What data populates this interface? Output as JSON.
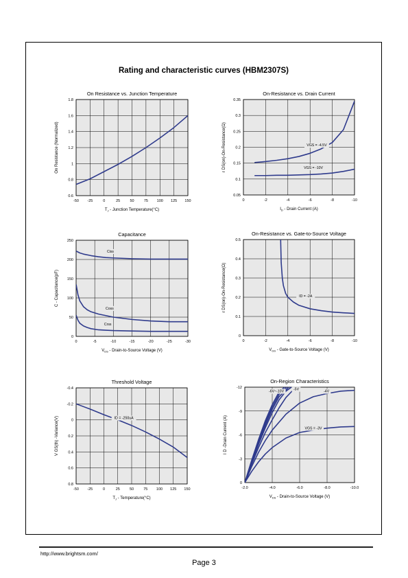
{
  "page": {
    "main_title": "Rating and characteristic curves (HBM2307S)",
    "footer_url": "http://www.brightsm.com/",
    "footer_page": "Page 3",
    "curve_color": "#2e3a8c",
    "plot_bg": "#e8e8e8"
  },
  "chart_data": [
    {
      "id": "c1",
      "type": "line",
      "title": "On Resistance vs. Junction Temperature",
      "xlabel": {
        "sub": "J",
        "main": "T",
        "rest": " - Junction Temperature(°C)"
      },
      "ylabel": "On Resistance (Normalized)",
      "xlim": [
        -50,
        150
      ],
      "ylim": [
        0.6,
        1.8
      ],
      "x_ticks": [
        -50,
        -25,
        0,
        25,
        50,
        75,
        100,
        125,
        150
      ],
      "x_tick_labels": [
        "-50",
        "-25",
        "0",
        "25",
        "50",
        "75",
        "100",
        "125",
        "150"
      ],
      "y_ticks": [
        0.6,
        0.8,
        1.0,
        1.2,
        1.4,
        1.6,
        1.8
      ],
      "y_tick_labels": [
        "0.6",
        "0.8",
        "1",
        "1.2",
        "1.4",
        "1.6",
        "1.8"
      ],
      "series": [
        {
          "x": [
            -50,
            -25,
            0,
            25,
            50,
            75,
            100,
            125,
            150
          ],
          "y": [
            0.74,
            0.81,
            0.9,
            0.99,
            1.09,
            1.2,
            1.32,
            1.45,
            1.6
          ]
        }
      ],
      "annotations": []
    },
    {
      "id": "c2",
      "type": "line",
      "title": "On-Resistance vs. Drain Current",
      "xlabel": {
        "sub": "D",
        "main": "I",
        "rest": " - Drain Current (A)"
      },
      "ylabel": "r DS(on)-On-Resistance(Ω)",
      "xlim": [
        0,
        -10
      ],
      "ylim": [
        0.05,
        0.35
      ],
      "x_ticks": [
        0,
        -2,
        -4,
        -6,
        -8,
        -10
      ],
      "x_tick_labels": [
        "0",
        "-2",
        "-4",
        "-6",
        "-8",
        "-10"
      ],
      "y_ticks": [
        0.05,
        0.1,
        0.15,
        0.2,
        0.25,
        0.3,
        0.35
      ],
      "y_tick_labels": [
        "0.05",
        "0.1",
        "0.15",
        "0.2",
        "0.25",
        "0.3",
        "0.35"
      ],
      "series": [
        {
          "name": "VGS = -4.5V",
          "x": [
            -1,
            -2,
            -3,
            -4,
            -5,
            -6,
            -7,
            -8,
            -9,
            -10
          ],
          "y": [
            0.152,
            0.155,
            0.159,
            0.164,
            0.171,
            0.181,
            0.195,
            0.215,
            0.255,
            0.345
          ]
        },
        {
          "name": "VGS = -10V",
          "x": [
            -1,
            -2,
            -3,
            -4,
            -5,
            -6,
            -7,
            -8,
            -9,
            -10
          ],
          "y": [
            0.111,
            0.111,
            0.112,
            0.112,
            0.113,
            0.114,
            0.116,
            0.119,
            0.124,
            0.131
          ]
        }
      ],
      "annotations": [
        {
          "text": "VGS = -4.5V",
          "x": -6.6,
          "y": 0.203
        },
        {
          "text": "VGS = -10V",
          "x": -6.3,
          "y": 0.132
        }
      ]
    },
    {
      "id": "c3",
      "type": "line",
      "title": "Capacitance",
      "xlabel": {
        "sub": "DS",
        "main": "V",
        "rest": " - Drain-to-Source Voltage (V)"
      },
      "ylabel": "C - Capacitance(pF)",
      "xlim": [
        0,
        -30
      ],
      "ylim": [
        0,
        250
      ],
      "x_ticks": [
        0,
        -5,
        -10,
        -15,
        -20,
        -25,
        -30
      ],
      "x_tick_labels": [
        "0",
        "-5",
        "-10",
        "-15",
        "-20",
        "-25",
        "-30"
      ],
      "y_ticks": [
        0,
        50,
        100,
        150,
        200,
        250
      ],
      "y_tick_labels": [
        "0",
        "50",
        "100",
        "150",
        "200",
        "250"
      ],
      "series": [
        {
          "name": "Ciss",
          "x": [
            0,
            -1,
            -2,
            -4,
            -6,
            -8,
            -10,
            -15,
            -20,
            -25,
            -30
          ],
          "y": [
            222,
            217,
            214,
            210,
            207,
            205,
            204,
            202,
            201,
            201,
            201
          ]
        },
        {
          "name": "Coss",
          "x": [
            0,
            -0.5,
            -1,
            -2,
            -3,
            -4,
            -6,
            -8,
            -10,
            -15,
            -20,
            -25,
            -30
          ],
          "y": [
            135,
            108,
            92,
            77,
            69,
            64,
            58,
            54,
            50,
            44,
            40,
            38,
            38
          ]
        },
        {
          "name": "Crss",
          "x": [
            0,
            -0.5,
            -1,
            -2,
            -3,
            -4,
            -6,
            -8,
            -10,
            -15,
            -20,
            -25,
            -30
          ],
          "y": [
            55,
            42,
            34,
            27,
            23,
            20,
            17,
            16,
            15,
            14,
            13,
            13,
            13
          ]
        }
      ],
      "annotations": [
        {
          "text": "Ciss",
          "x": -9.2,
          "y": 218
        },
        {
          "text": "Coss",
          "x": -9.0,
          "y": 70
        },
        {
          "text": "Crss",
          "x": -8.5,
          "y": 29
        }
      ]
    },
    {
      "id": "c4",
      "type": "line",
      "title": "On-Resistance vs. Gate-to-Source Voltage",
      "xlabel": {
        "sub": "GS",
        "main": "V",
        "rest": " - Gate-to-Source Voltage (V)"
      },
      "ylabel": "r DS(on)-On-Resistance(Ω)",
      "xlim": [
        0,
        -10
      ],
      "ylim": [
        0,
        0.5
      ],
      "x_ticks": [
        0,
        -2,
        -4,
        -6,
        -8,
        -10
      ],
      "x_tick_labels": [
        "0",
        "-2",
        "-4",
        "-6",
        "-8",
        "-10"
      ],
      "y_ticks": [
        0,
        0.1,
        0.2,
        0.3,
        0.4,
        0.5
      ],
      "y_tick_labels": [
        "0",
        "0.1",
        "0.2",
        "0.3",
        "0.4",
        "0.5"
      ],
      "series": [
        {
          "name": "ID = -2A",
          "x": [
            -3.35,
            -3.4,
            -3.5,
            -3.6,
            -3.8,
            -4.0,
            -4.5,
            -5,
            -6,
            -7,
            -8,
            -9,
            -10
          ],
          "y": [
            0.5,
            0.38,
            0.3,
            0.26,
            0.22,
            0.2,
            0.175,
            0.158,
            0.14,
            0.13,
            0.123,
            0.119,
            0.116
          ]
        }
      ],
      "annotations": [
        {
          "text": "ID = -2A",
          "x": -5.6,
          "y": 0.2
        }
      ]
    },
    {
      "id": "c5",
      "type": "line",
      "title": "Threshold Voltage",
      "xlabel": {
        "sub": "J",
        "main": "T",
        "rest": " -  Temperature(°C)"
      },
      "ylabel": "V GS(th) -Variance(V)",
      "xlim": [
        -50,
        150
      ],
      "ylim": [
        0.8,
        -0.4
      ],
      "x_ticks": [
        -50,
        -25,
        0,
        25,
        50,
        75,
        100,
        125,
        150
      ],
      "x_tick_labels": [
        "-50",
        "-25",
        "0",
        "25",
        "50",
        "75",
        "100",
        "125",
        "150"
      ],
      "y_ticks": [
        -0.4,
        -0.2,
        0,
        0.2,
        0.4,
        0.6,
        0.8
      ],
      "y_tick_labels": [
        "-0.4",
        "-0.2",
        "0",
        "0.2",
        "0.4",
        "0.6",
        "0.8"
      ],
      "series": [
        {
          "name": "ID = -250uA",
          "x": [
            -50,
            -25,
            0,
            25,
            50,
            75,
            100,
            125,
            150
          ],
          "y": [
            -0.2,
            -0.135,
            -0.065,
            0.0,
            0.07,
            0.15,
            0.24,
            0.34,
            0.47
          ]
        }
      ],
      "annotations": [
        {
          "text": "ID = -250uA",
          "x": 36,
          "y": -0.01
        }
      ]
    },
    {
      "id": "c6",
      "type": "line",
      "title": "On-Region Characteristics",
      "xlabel": {
        "sub": "DS",
        "main": "V",
        "rest": " - Drain-to-Source Voltage (V)"
      },
      "ylabel": "I D -Drain Current (A)",
      "xlim": [
        -2,
        -10
      ],
      "ylim": [
        0,
        -12
      ],
      "x_ticks": [
        -2,
        -4,
        -6,
        -8,
        -10
      ],
      "x_tick_labels": [
        "-2.0",
        "-4.0",
        "-6.0",
        "-8.0",
        "-10.0"
      ],
      "y_ticks": [
        0,
        -3,
        -6,
        -9,
        -12
      ],
      "y_tick_labels": [
        "0",
        "-3",
        "-6",
        "-9",
        "-12"
      ],
      "series": [
        {
          "name": "VGS = -3V",
          "x": [
            -2,
            -2.5,
            -3,
            -3.5,
            -4,
            -5,
            -6,
            -7,
            -8,
            -9,
            -10
          ],
          "y": [
            0,
            -1.4,
            -2.6,
            -3.6,
            -4.4,
            -5.6,
            -6.3,
            -6.6,
            -6.85,
            -7.0,
            -7.05
          ]
        },
        {
          "name": "-4V",
          "x": [
            -2,
            -2.5,
            -3,
            -3.5,
            -4,
            -5,
            -6,
            -7,
            -8,
            -9,
            -10
          ],
          "y": [
            0,
            -2.0,
            -3.8,
            -5.3,
            -6.6,
            -8.6,
            -10.0,
            -10.8,
            -11.2,
            -11.5,
            -11.6
          ]
        },
        {
          "name": "-5V",
          "x": [
            -2,
            -2.5,
            -3,
            -3.5,
            -4,
            -4.5,
            -5,
            -5.5,
            -6
          ],
          "y": [
            0,
            -2.3,
            -4.4,
            -6.3,
            -7.9,
            -9.4,
            -10.7,
            -11.6,
            -12
          ]
        },
        {
          "name": "-6V",
          "x": [
            -2,
            -2.5,
            -3,
            -3.5,
            -4,
            -4.5,
            -5,
            -5.4
          ],
          "y": [
            0,
            -2.5,
            -4.8,
            -6.9,
            -8.8,
            -10.4,
            -11.5,
            -12
          ]
        },
        {
          "name": "-7V",
          "x": [
            -2,
            -2.5,
            -3,
            -3.5,
            -4,
            -4.5,
            -5.2
          ],
          "y": [
            0,
            -2.6,
            -5.0,
            -7.2,
            -9.2,
            -10.8,
            -12
          ]
        },
        {
          "name": "-8V",
          "x": [
            -2,
            -2.5,
            -3,
            -3.5,
            -4,
            -4.5,
            -5.05
          ],
          "y": [
            0,
            -2.7,
            -5.2,
            -7.5,
            -9.5,
            -11.1,
            -12
          ]
        },
        {
          "name": "-10V",
          "x": [
            -2,
            -2.5,
            -3,
            -3.5,
            -4,
            -4.5,
            -4.9
          ],
          "y": [
            0,
            -2.8,
            -5.4,
            -7.8,
            -9.8,
            -11.4,
            -12
          ]
        }
      ],
      "annotations": [
        {
          "text": "-6V~-10V",
          "x": -4.3,
          "y": -11.35
        },
        {
          "text": "-5V",
          "x": -5.75,
          "y": -11.6
        },
        {
          "text": "-4V",
          "x": -7.95,
          "y": -11.35
        },
        {
          "text": "VGS = -3V",
          "x": -7.0,
          "y": -6.7
        }
      ]
    }
  ]
}
